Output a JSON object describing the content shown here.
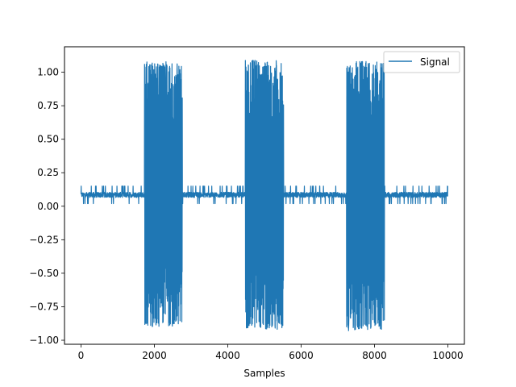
{
  "chart_data": {
    "type": "line",
    "xlabel": "Samples",
    "ylabel": "",
    "xlim": [
      -450,
      10450
    ],
    "ylim": [
      -1.03,
      1.19
    ],
    "xticks": [
      0,
      2000,
      4000,
      6000,
      8000,
      10000
    ],
    "xtick_labels": [
      "0",
      "2000",
      "4000",
      "6000",
      "8000",
      "10000"
    ],
    "yticks": [
      -1.0,
      -0.75,
      -0.5,
      -0.25,
      0.0,
      0.25,
      0.5,
      0.75,
      1.0
    ],
    "ytick_labels": [
      "−1.00",
      "−0.75",
      "−0.50",
      "−0.25",
      "0.00",
      "0.25",
      "0.50",
      "0.75",
      "1.00"
    ],
    "grid": false,
    "legend": {
      "position": "top-right"
    },
    "series": [
      {
        "name": "Signal",
        "color": "#1f77b4",
        "num_samples": 10000,
        "baseline": {
          "x_range": [
            0,
            10000
          ],
          "y_min": 0.02,
          "y_max": 0.15
        },
        "bursts": [
          {
            "x_range": [
              1730,
              2760
            ],
            "y_min": -0.9,
            "y_max": 1.08
          },
          {
            "x_range": [
              4480,
              5520
            ],
            "y_min": -0.92,
            "y_max": 1.09
          },
          {
            "x_range": [
              7240,
              8270
            ],
            "y_min": -0.93,
            "y_max": 1.08
          }
        ]
      }
    ]
  }
}
